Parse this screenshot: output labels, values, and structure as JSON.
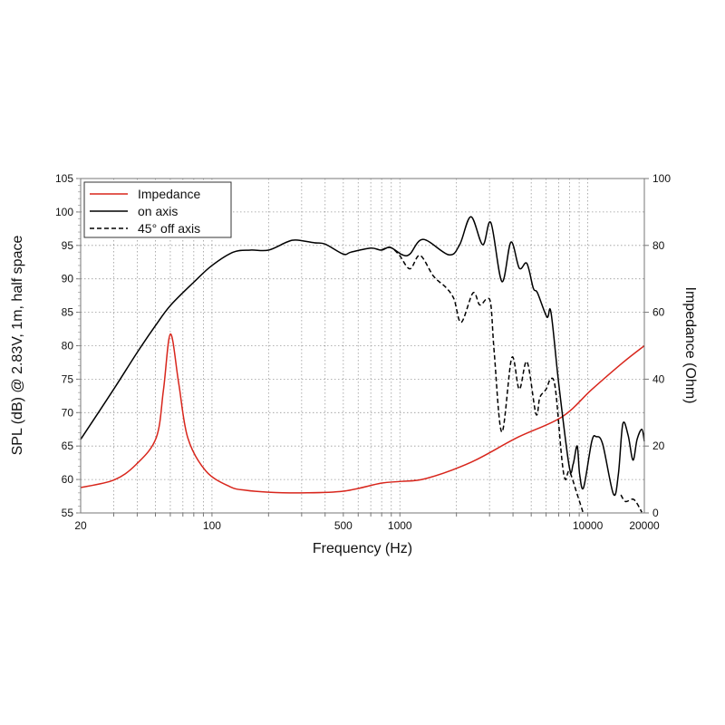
{
  "chart_data": {
    "type": "line",
    "xlabel": "Frequency (Hz)",
    "ylabel": "SPL (dB) @ 2.83V, 1m, half space",
    "y2label": "Impedance (Ohm)",
    "xscale": "log",
    "xlim": [
      20,
      20000
    ],
    "ylim": [
      55,
      105
    ],
    "y2lim": [
      0,
      100
    ],
    "grid": true,
    "legend_position": "top-left",
    "x_ticks": [
      20,
      100,
      500,
      1000,
      10000,
      20000
    ],
    "x_tick_labels": [
      "20",
      "100",
      "500",
      "1000",
      "10000",
      "20000"
    ],
    "y_ticks": [
      "55",
      "60",
      "65",
      "70",
      "75",
      "80",
      "85",
      "90",
      "95",
      "100",
      "105"
    ],
    "y2_ticks": [
      "0",
      "20",
      "40",
      "60",
      "80",
      "100"
    ],
    "colors": {
      "impedance": "#d8261c",
      "on_axis": "#000000",
      "off_axis": "#000000"
    },
    "series": [
      {
        "name": "Impedance",
        "axis": "right",
        "style": "solid",
        "x": [
          20,
          29.9,
          39.3,
          50.5,
          55.2,
          60.1,
          66.5,
          74.3,
          92.9,
          124,
          150,
          200,
          300,
          500,
          795,
          1000,
          1380,
          2400,
          4200,
          7280,
          10500,
          15400,
          20000
        ],
        "y": [
          7.6,
          9.8,
          14.4,
          22.5,
          36.9,
          53.5,
          38.8,
          22.5,
          12.5,
          7.9,
          6.8,
          6.2,
          6.0,
          6.5,
          8.9,
          9.4,
          10.3,
          15.2,
          22.5,
          28.7,
          36.9,
          45.0,
          50.0
        ]
      },
      {
        "name": "on axis",
        "axis": "left",
        "style": "solid",
        "x": [
          20,
          30,
          40,
          50,
          60,
          80,
          100,
          130,
          160,
          200,
          250,
          280,
          350,
          400,
          500,
          550,
          700,
          795,
          888,
          1030,
          1130,
          1330,
          1820,
          2080,
          2388,
          2760,
          3050,
          3490,
          3900,
          4320,
          4740,
          5130,
          5400,
          6060,
          6370,
          7000,
          7970,
          8360,
          8780,
          9050,
          9500,
          10500,
          11100,
          12000,
          13700,
          14550,
          15360,
          16400,
          17400,
          18300,
          19400,
          20000
        ],
        "y": [
          66,
          73.5,
          79,
          83,
          86,
          89.5,
          92,
          94,
          94.3,
          94.3,
          95.5,
          95.8,
          95.4,
          95.2,
          93.7,
          94,
          94.6,
          94.3,
          94.7,
          93.6,
          93.7,
          95.9,
          93.6,
          95.1,
          99.3,
          95.1,
          98.4,
          89.6,
          95.5,
          91.6,
          92.3,
          88.6,
          87.9,
          84.3,
          85,
          74.4,
          61.9,
          62.3,
          65,
          60.8,
          58.8,
          65.7,
          66.4,
          65.3,
          57.8,
          60.8,
          68.3,
          66.6,
          62.9,
          66,
          67.5,
          65.7
        ]
      },
      {
        "name": "45° off axis",
        "axis": "left",
        "style": "dashed",
        "segments": [
          {
            "x": [
              795,
              888,
              990,
              1130,
              1280,
              1510,
              1760,
              1940,
              2120,
              2450,
              2660,
              2900,
              3050,
              3180,
              3490,
              3940,
              4320,
              4750,
              5300,
              5560,
              6000,
              6370,
              6730,
              7280,
              7600,
              7980,
              8780,
              9450
            ],
            "y": [
              94.3,
              94.7,
              93.6,
              91.5,
              93.5,
              90.4,
              88.7,
              87,
              83.5,
              87.9,
              86.1,
              87,
              86.1,
              78.9,
              67.1,
              78.2,
              73.5,
              77.6,
              69.8,
              72.3,
              73.5,
              75.1,
              73.5,
              63,
              60,
              61.2,
              57.8,
              55
            ]
          },
          {
            "x": [
              15000,
              15900,
              17600,
              19400
            ],
            "y": [
              57.7,
              56.7,
              57,
              55.1
            ]
          }
        ]
      }
    ]
  }
}
